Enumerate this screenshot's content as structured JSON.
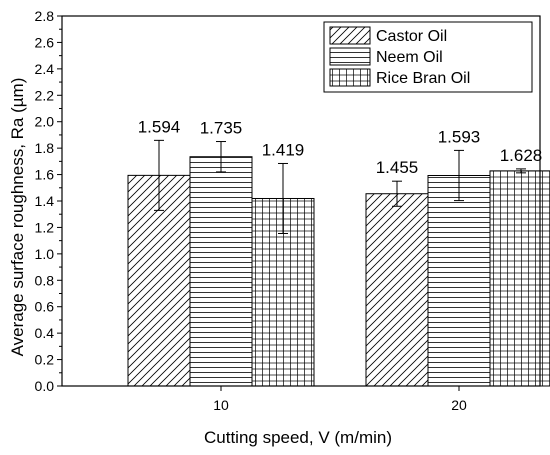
{
  "chart_data": {
    "type": "bar",
    "categories": [
      "10",
      "20"
    ],
    "series": [
      {
        "name": "Castor Oil",
        "values": [
          1.594,
          1.455
        ],
        "errors": [
          0.265,
          0.095
        ],
        "pattern": "diagonal"
      },
      {
        "name": "Neem Oil",
        "values": [
          1.735,
          1.593
        ],
        "errors": [
          0.115,
          0.19
        ],
        "pattern": "horizontal"
      },
      {
        "name": "Rice Bran Oil",
        "values": [
          1.419,
          1.628
        ],
        "errors": [
          0.265,
          0.015
        ],
        "pattern": "grid"
      }
    ],
    "value_labels": [
      [
        "1.594",
        "1.455"
      ],
      [
        "1.735",
        "1.593"
      ],
      [
        "1.419",
        "1.628"
      ]
    ],
    "xlabel": "Cutting speed, V (m/min)",
    "ylabel": "Average surface roughness, Ra (µm)",
    "ylim": [
      0,
      2.8
    ],
    "yticks": [
      "0.0",
      "0.2",
      "0.4",
      "0.6",
      "0.8",
      "1.0",
      "1.2",
      "1.4",
      "1.6",
      "1.8",
      "2.0",
      "2.2",
      "2.4",
      "2.6",
      "2.8"
    ],
    "grid": false,
    "legend": "top-right",
    "bar_color": "#ffffff",
    "line_color": "#000000"
  }
}
